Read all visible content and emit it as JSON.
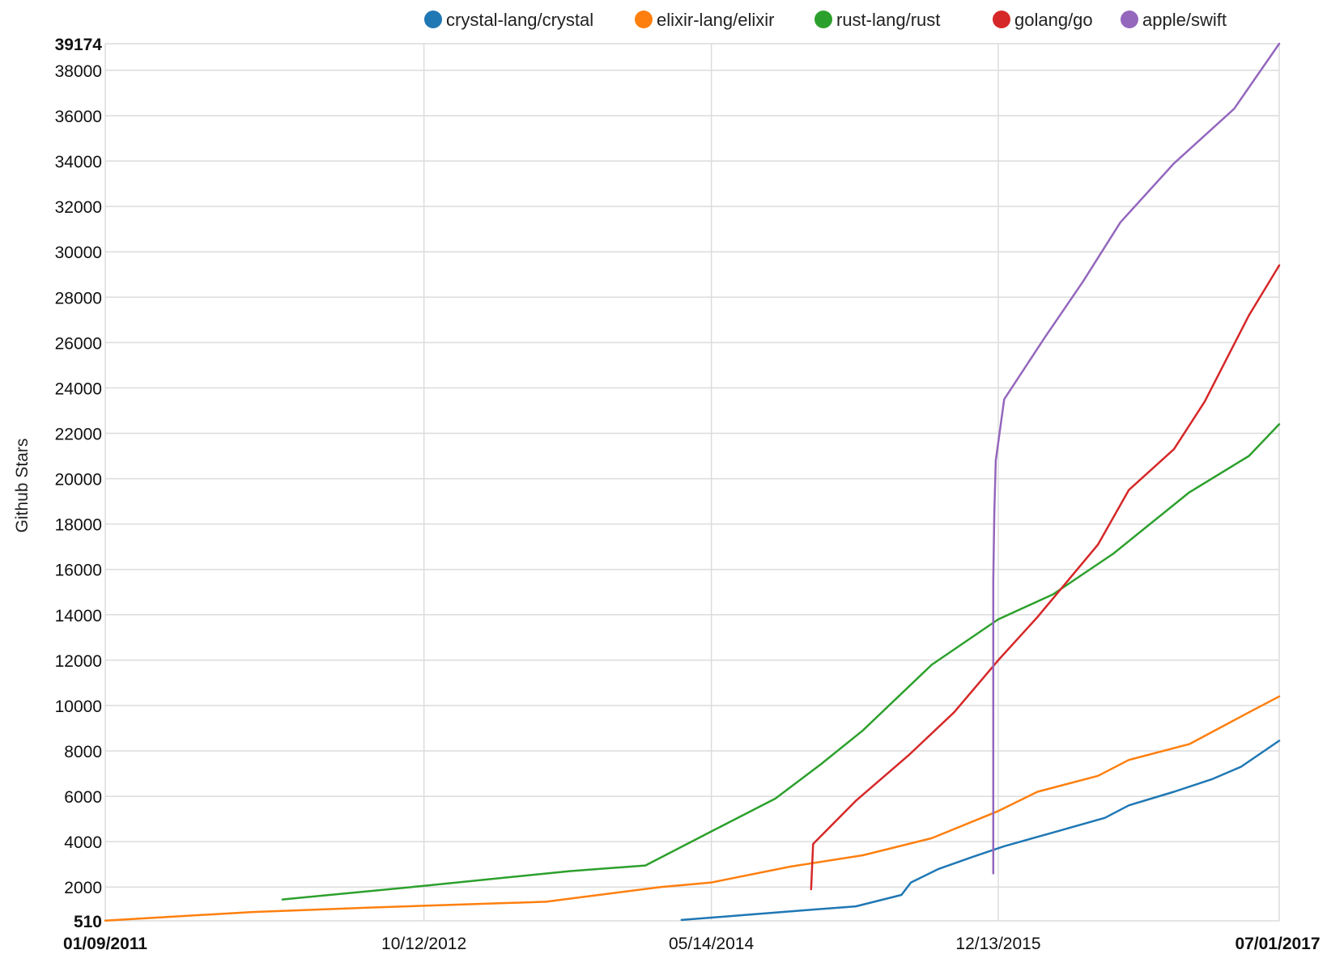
{
  "chart_data": {
    "type": "line",
    "ylabel": "Github Stars",
    "xlabel": "",
    "ylim": [
      510,
      39174
    ],
    "xlim": [
      "2011-01-09",
      "2017-07-01"
    ],
    "y_ticks": [
      510,
      2000,
      4000,
      6000,
      8000,
      10000,
      12000,
      14000,
      16000,
      18000,
      20000,
      22000,
      24000,
      26000,
      28000,
      30000,
      32000,
      34000,
      36000,
      38000,
      39174
    ],
    "y_ticks_bold": [
      510,
      39174
    ],
    "x_ticks": [
      {
        "date": "2011-01-09",
        "label": "01/09/2011",
        "bold": true
      },
      {
        "date": "2012-10-12",
        "label": "10/12/2012",
        "bold": false
      },
      {
        "date": "2014-05-14",
        "label": "05/14/2014",
        "bold": false
      },
      {
        "date": "2015-12-13",
        "label": "12/13/2015",
        "bold": false
      },
      {
        "date": "2017-07-01",
        "label": "07/01/2017",
        "bold": true
      }
    ],
    "grid": {
      "horizontal": true,
      "vertical": true
    },
    "legend_position": "top",
    "series": [
      {
        "name": "crystal-lang/crystal",
        "color": "#1f77b4",
        "points": [
          [
            "2014-03-15",
            550
          ],
          [
            "2014-07-10",
            750
          ],
          [
            "2014-11-01",
            950
          ],
          [
            "2015-03-01",
            1150
          ],
          [
            "2015-06-01",
            1650
          ],
          [
            "2015-06-20",
            2200
          ],
          [
            "2015-08-15",
            2800
          ],
          [
            "2015-10-25",
            3350
          ],
          [
            "2015-12-25",
            3800
          ],
          [
            "2016-04-01",
            4400
          ],
          [
            "2016-07-15",
            5050
          ],
          [
            "2016-09-01",
            5600
          ],
          [
            "2016-12-01",
            6200
          ],
          [
            "2017-02-15",
            6750
          ],
          [
            "2017-04-15",
            7300
          ],
          [
            "2017-07-01",
            8450
          ]
        ]
      },
      {
        "name": "elixir-lang/elixir",
        "color": "#ff7f0e",
        "points": [
          [
            "2011-01-09",
            520
          ],
          [
            "2011-11-01",
            900
          ],
          [
            "2012-07-01",
            1100
          ],
          [
            "2013-06-15",
            1350
          ],
          [
            "2014-02-01",
            2000
          ],
          [
            "2014-05-14",
            2200
          ],
          [
            "2014-10-20",
            2900
          ],
          [
            "2015-03-15",
            3400
          ],
          [
            "2015-08-01",
            4150
          ],
          [
            "2015-12-13",
            5350
          ],
          [
            "2016-03-01",
            6200
          ],
          [
            "2016-07-01",
            6900
          ],
          [
            "2016-09-01",
            7600
          ],
          [
            "2017-01-01",
            8300
          ],
          [
            "2017-05-01",
            9700
          ],
          [
            "2017-07-01",
            10400
          ]
        ]
      },
      {
        "name": "rust-lang/rust",
        "color": "#2ca02c",
        "points": [
          [
            "2012-01-01",
            1450
          ],
          [
            "2012-10-12",
            2050
          ],
          [
            "2013-08-01",
            2700
          ],
          [
            "2014-01-01",
            2950
          ],
          [
            "2014-05-14",
            4450
          ],
          [
            "2014-09-20",
            5900
          ],
          [
            "2014-12-20",
            7400
          ],
          [
            "2015-03-15",
            8900
          ],
          [
            "2015-08-01",
            11800
          ],
          [
            "2015-12-13",
            13800
          ],
          [
            "2016-04-01",
            14900
          ],
          [
            "2016-08-01",
            16700
          ],
          [
            "2017-01-01",
            19400
          ],
          [
            "2017-05-01",
            21000
          ],
          [
            "2017-07-01",
            22400
          ]
        ]
      },
      {
        "name": "golang/go",
        "color": "#d62728",
        "points": [
          [
            "2014-12-01",
            1900
          ],
          [
            "2014-12-05",
            3900
          ],
          [
            "2015-03-01",
            5800
          ],
          [
            "2015-06-15",
            7800
          ],
          [
            "2015-09-15",
            9700
          ],
          [
            "2015-12-13",
            12000
          ],
          [
            "2016-03-01",
            13900
          ],
          [
            "2016-07-01",
            17100
          ],
          [
            "2016-09-01",
            19500
          ],
          [
            "2016-12-01",
            21300
          ],
          [
            "2017-02-01",
            23400
          ],
          [
            "2017-05-01",
            27200
          ],
          [
            "2017-07-01",
            29400
          ]
        ]
      },
      {
        "name": "apple/swift",
        "color": "#9467bd",
        "points": [
          [
            "2015-12-03",
            2600
          ],
          [
            "2015-12-03",
            15500
          ],
          [
            "2015-12-05",
            18500
          ],
          [
            "2015-12-08",
            20800
          ],
          [
            "2015-12-25",
            23500
          ],
          [
            "2016-03-15",
            26200
          ],
          [
            "2016-06-01",
            28700
          ],
          [
            "2016-08-15",
            31300
          ],
          [
            "2016-12-01",
            33900
          ],
          [
            "2017-04-01",
            36300
          ],
          [
            "2017-07-01",
            39174
          ]
        ]
      }
    ]
  }
}
